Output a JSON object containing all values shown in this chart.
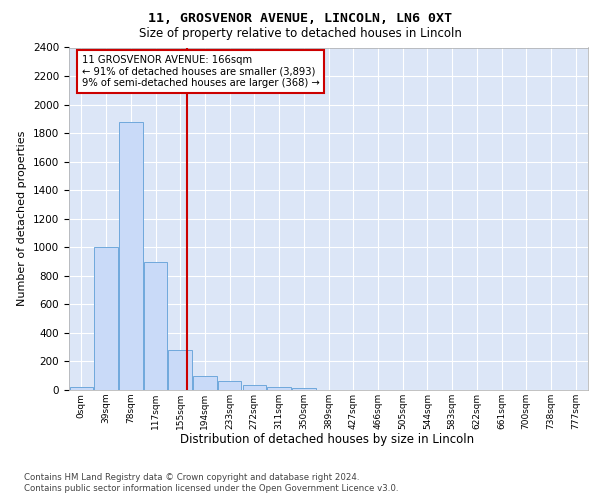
{
  "title_line1": "11, GROSVENOR AVENUE, LINCOLN, LN6 0XT",
  "title_line2": "Size of property relative to detached houses in Lincoln",
  "xlabel": "Distribution of detached houses by size in Lincoln",
  "ylabel": "Number of detached properties",
  "bar_categories": [
    "0sqm",
    "39sqm",
    "78sqm",
    "117sqm",
    "155sqm",
    "194sqm",
    "233sqm",
    "272sqm",
    "311sqm",
    "350sqm",
    "389sqm",
    "427sqm",
    "466sqm",
    "505sqm",
    "544sqm",
    "583sqm",
    "622sqm",
    "661sqm",
    "700sqm",
    "738sqm",
    "777sqm"
  ],
  "bar_values": [
    20,
    1000,
    1880,
    900,
    280,
    100,
    60,
    35,
    20,
    15,
    0,
    0,
    0,
    0,
    0,
    0,
    0,
    0,
    0,
    0,
    0
  ],
  "bar_color": "#c9daf8",
  "bar_edgecolor": "#6fa8dc",
  "property_line_x": 4.27,
  "property_line_color": "#cc0000",
  "annotation_text": "11 GROSVENOR AVENUE: 166sqm\n← 91% of detached houses are smaller (3,893)\n9% of semi-detached houses are larger (368) →",
  "annotation_box_color": "white",
  "annotation_box_edgecolor": "#cc0000",
  "ylim": [
    0,
    2400
  ],
  "yticks": [
    0,
    200,
    400,
    600,
    800,
    1000,
    1200,
    1400,
    1600,
    1800,
    2000,
    2200,
    2400
  ],
  "footer_line1": "Contains HM Land Registry data © Crown copyright and database right 2024.",
  "footer_line2": "Contains public sector information licensed under the Open Government Licence v3.0.",
  "plot_background": "#dce6f7",
  "grid_color": "white"
}
